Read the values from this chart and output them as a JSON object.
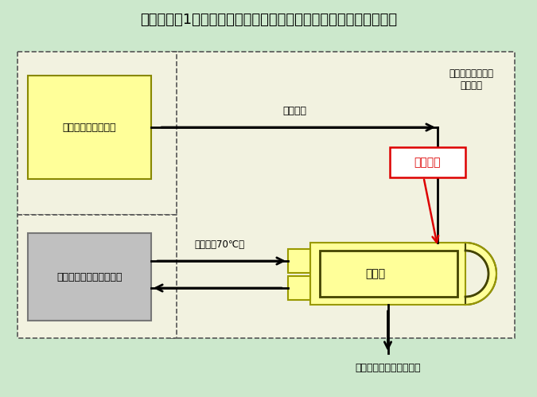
{
  "title": "伊方発電所1号機　非常用ディーゼル発電機用補助蒸気系統概略図",
  "bg_color": "#cce8cc",
  "panel_color": "#f0f0e0",
  "yellow_fill": "#ffff99",
  "yellow_edge": "#999900",
  "gray_fill": "#c0c0c0",
  "gray_edge": "#888888",
  "white_fill": "#ffffff",
  "label_steam_conv": "スチームコンバータ",
  "label_diesel": "ディーゼル発電機　機関",
  "label_heater": "加熱器",
  "label_fukujo": "補助蒸気",
  "label_onsu": "温水（約70℃）",
  "label_hijo_diesel": "非常用ディーゼル\n　発電機",
  "label_drain": "補助蒸気ドレンタンクへ",
  "label_to該": "当該箇所",
  "red_color": "#dd0000",
  "black": "#000000",
  "dash_edge": "#555555"
}
